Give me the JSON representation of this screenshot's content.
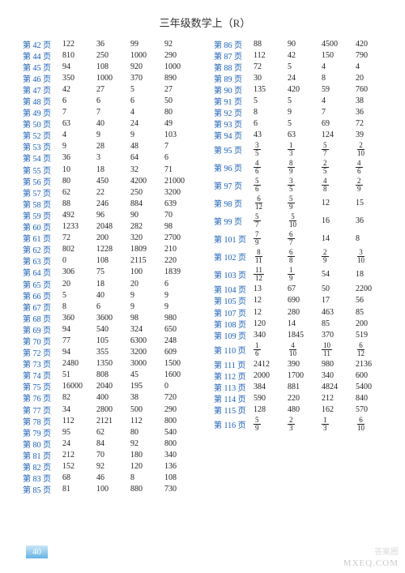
{
  "title": "三年级数学上（R）",
  "page_number": "40",
  "watermark_main": "MXEQ.COM",
  "watermark_sub": "答案圈",
  "colors": {
    "page_label": "#1a5fb4",
    "text": "#222222",
    "bg": "#ffffff",
    "pagenum_grad_from": "#66b3e6",
    "pagenum_grad_to": "#cce6f5"
  },
  "left": [
    {
      "p": "第 42 页",
      "v": [
        "122",
        "36",
        "99",
        "92"
      ]
    },
    {
      "p": "第 44 页",
      "v": [
        "810",
        "250",
        "1000",
        "290"
      ]
    },
    {
      "p": "第 45 页",
      "v": [
        "94",
        "108",
        "920",
        "1000"
      ]
    },
    {
      "p": "第 46 页",
      "v": [
        "350",
        "1000",
        "370",
        "890"
      ]
    },
    {
      "p": "第 47 页",
      "v": [
        "42",
        "27",
        "5",
        "27"
      ]
    },
    {
      "p": "第 48 页",
      "v": [
        "6",
        "6",
        "6",
        "50"
      ]
    },
    {
      "p": "第 49 页",
      "v": [
        "7",
        "7",
        "4",
        "80"
      ]
    },
    {
      "p": "第 50 页",
      "v": [
        "63",
        "40",
        "24",
        "49"
      ]
    },
    {
      "p": "第 52 页",
      "v": [
        "4",
        "9",
        "9",
        "103"
      ]
    },
    {
      "p": "第 53 页",
      "v": [
        "9",
        "28",
        "48",
        "7"
      ]
    },
    {
      "p": "第 54 页",
      "v": [
        "36",
        "3",
        "64",
        "6"
      ]
    },
    {
      "p": "第 55 页",
      "v": [
        "10",
        "18",
        "32",
        "71"
      ]
    },
    {
      "p": "第 56 页",
      "v": [
        "80",
        "450",
        "4200",
        "21000"
      ]
    },
    {
      "p": "第 57 页",
      "v": [
        "62",
        "22",
        "250",
        "3200"
      ]
    },
    {
      "p": "第 58 页",
      "v": [
        "88",
        "246",
        "884",
        "639"
      ]
    },
    {
      "p": "第 59 页",
      "v": [
        "492",
        "96",
        "90",
        "70"
      ]
    },
    {
      "p": "第 60 页",
      "v": [
        "1233",
        "2048",
        "282",
        "98"
      ]
    },
    {
      "p": "第 61 页",
      "v": [
        "72",
        "200",
        "320",
        "2700"
      ]
    },
    {
      "p": "第 62 页",
      "v": [
        "802",
        "1228",
        "1809",
        "210"
      ]
    },
    {
      "p": "第 63 页",
      "v": [
        "0",
        "108",
        "2115",
        "220"
      ]
    },
    {
      "p": "第 64 页",
      "v": [
        "306",
        "75",
        "100",
        "1839"
      ]
    },
    {
      "p": "第 65 页",
      "v": [
        "20",
        "18",
        "20",
        "6"
      ]
    },
    {
      "p": "第 66 页",
      "v": [
        "5",
        "40",
        "9",
        "9"
      ]
    },
    {
      "p": "第 67 页",
      "v": [
        "8",
        "6",
        "9",
        "9"
      ]
    },
    {
      "p": "第 68 页",
      "v": [
        "360",
        "3600",
        "98",
        "980"
      ]
    },
    {
      "p": "第 69 页",
      "v": [
        "94",
        "540",
        "324",
        "650"
      ]
    },
    {
      "p": "第 70 页",
      "v": [
        "77",
        "105",
        "6300",
        "248"
      ]
    },
    {
      "p": "第 72 页",
      "v": [
        "94",
        "355",
        "3200",
        "609"
      ]
    },
    {
      "p": "第 73 页",
      "v": [
        "2480",
        "1350",
        "3000",
        "1500"
      ]
    },
    {
      "p": "第 74 页",
      "v": [
        "51",
        "808",
        "45",
        "1600"
      ]
    },
    {
      "p": "第 75 页",
      "v": [
        "16000",
        "2040",
        "195",
        "0"
      ]
    },
    {
      "p": "第 76 页",
      "v": [
        "82",
        "400",
        "38",
        "720"
      ]
    },
    {
      "p": "第 77 页",
      "v": [
        "34",
        "2800",
        "500",
        "290"
      ]
    },
    {
      "p": "第 78 页",
      "v": [
        "112",
        "2121",
        "112",
        "800"
      ]
    },
    {
      "p": "第 79 页",
      "v": [
        "95",
        "62",
        "80",
        "540"
      ]
    },
    {
      "p": "第 80 页",
      "v": [
        "24",
        "84",
        "92",
        "800"
      ]
    },
    {
      "p": "第 81 页",
      "v": [
        "212",
        "70",
        "180",
        "340"
      ]
    },
    {
      "p": "第 82 页",
      "v": [
        "152",
        "92",
        "120",
        "136"
      ]
    },
    {
      "p": "第 83 页",
      "v": [
        "68",
        "46",
        "8",
        "108"
      ]
    },
    {
      "p": "第 85 页",
      "v": [
        "81",
        "100",
        "880",
        "730"
      ]
    }
  ],
  "right": [
    {
      "p": "第 86 页",
      "v": [
        "88",
        "90",
        "4500",
        "420"
      ]
    },
    {
      "p": "第 87 页",
      "v": [
        "112",
        "42",
        "150",
        "790"
      ]
    },
    {
      "p": "第 88 页",
      "v": [
        "72",
        "5",
        "4",
        "4"
      ]
    },
    {
      "p": "第 89 页",
      "v": [
        "30",
        "24",
        "8",
        "20"
      ]
    },
    {
      "p": "第 90 页",
      "v": [
        "135",
        "420",
        "59",
        "760"
      ]
    },
    {
      "p": "第 91 页",
      "v": [
        "5",
        "5",
        "4",
        "38"
      ]
    },
    {
      "p": "第 92 页",
      "v": [
        "8",
        "9",
        "7",
        "36"
      ]
    },
    {
      "p": "第 93 页",
      "v": [
        "6",
        "5",
        "69",
        "72"
      ]
    },
    {
      "p": "第 94 页",
      "v": [
        "43",
        "63",
        "124",
        "39"
      ]
    },
    {
      "p": "第 95 页",
      "tall": true,
      "f": [
        [
          "3",
          "5"
        ],
        [
          "1",
          "3"
        ],
        [
          "5",
          "7"
        ],
        [
          "2",
          "10"
        ]
      ]
    },
    {
      "p": "第 96 页",
      "tall": true,
      "f": [
        [
          "4",
          "6"
        ],
        [
          "8",
          "9"
        ],
        [
          "2",
          "5"
        ],
        [
          "4",
          "6"
        ]
      ]
    },
    {
      "p": "第 97 页",
      "tall": true,
      "f": [
        [
          "5",
          "6"
        ],
        [
          "3",
          "5"
        ],
        [
          "4",
          "8"
        ],
        [
          "2",
          "9"
        ]
      ]
    },
    {
      "p": "第 98 页",
      "tall": true,
      "mix": [
        {
          "f": [
            "6",
            "12"
          ]
        },
        {
          "f": [
            "5",
            "9"
          ]
        },
        {
          "t": "12"
        },
        {
          "t": "15"
        }
      ]
    },
    {
      "p": "第 99 页",
      "tall": true,
      "mix": [
        {
          "f": [
            "5",
            "7"
          ]
        },
        {
          "f": [
            "5",
            "10"
          ]
        },
        {
          "t": "16"
        },
        {
          "t": "36"
        }
      ]
    },
    {
      "p": "第 101 页",
      "tall": true,
      "mix": [
        {
          "f": [
            "7",
            "9"
          ]
        },
        {
          "f": [
            "6",
            "7"
          ]
        },
        {
          "t": "14"
        },
        {
          "t": "8"
        }
      ]
    },
    {
      "p": "第 102 页",
      "tall": true,
      "f": [
        [
          "8",
          "11"
        ],
        [
          "6",
          "8"
        ],
        [
          "2",
          "9"
        ],
        [
          "3",
          "10"
        ]
      ]
    },
    {
      "p": "第 103 页",
      "tall": true,
      "mix": [
        {
          "f": [
            "11",
            "12"
          ]
        },
        {
          "f": [
            "1",
            "9"
          ]
        },
        {
          "t": "54"
        },
        {
          "t": "18"
        }
      ]
    },
    {
      "p": "第 104 页",
      "v": [
        "13",
        "67",
        "50",
        "2200"
      ]
    },
    {
      "p": "第 105 页",
      "v": [
        "12",
        "690",
        "17",
        "56"
      ]
    },
    {
      "p": "第 107 页",
      "v": [
        "12",
        "280",
        "463",
        "85"
      ]
    },
    {
      "p": "第 108 页",
      "v": [
        "120",
        "14",
        "85",
        "200"
      ]
    },
    {
      "p": "第 109 页",
      "v": [
        "340",
        "1845",
        "370",
        "519"
      ]
    },
    {
      "p": "第 110 页",
      "tall": true,
      "f": [
        [
          "1",
          "6"
        ],
        [
          "4",
          "10"
        ],
        [
          "10",
          "11"
        ],
        [
          "6",
          "12"
        ]
      ]
    },
    {
      "p": "第 111 页",
      "v": [
        "2412",
        "390",
        "980",
        "2136"
      ]
    },
    {
      "p": "第 112 页",
      "v": [
        "2000",
        "1700",
        "340",
        "600"
      ]
    },
    {
      "p": "第 113 页",
      "v": [
        "384",
        "881",
        "4824",
        "5400"
      ]
    },
    {
      "p": "第 114 页",
      "v": [
        "590",
        "220",
        "212",
        "840"
      ]
    },
    {
      "p": "第 115 页",
      "v": [
        "128",
        "480",
        "162",
        "570"
      ]
    },
    {
      "p": "第 116 页",
      "tall": true,
      "f": [
        [
          "5",
          "9"
        ],
        [
          "2",
          "3"
        ],
        [
          "1",
          "3"
        ],
        [
          "6",
          "10"
        ]
      ]
    }
  ]
}
